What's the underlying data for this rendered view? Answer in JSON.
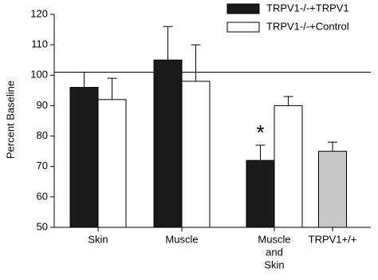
{
  "chart_data": {
    "type": "bar",
    "y_label": "Percent Baseline",
    "categories": [
      "Skin",
      "Muscle",
      [
        "Muscle",
        "and",
        "Skin"
      ],
      "TRPV1+/+"
    ],
    "series": [
      {
        "name": "TRPV1-/-+TRPV1",
        "color": "#1a1a1a",
        "values": [
          96,
          105,
          72,
          null
        ],
        "errors": [
          5,
          11,
          5,
          null
        ]
      },
      {
        "name": "TRPV1-/-+Control",
        "color": "#ffffff",
        "values": [
          92,
          98,
          90,
          null
        ],
        "errors": [
          7,
          12,
          3,
          null
        ]
      },
      {
        "color": "#c8c8c8",
        "values": [
          null,
          null,
          null,
          75
        ],
        "errors": [
          null,
          null,
          null,
          3
        ]
      }
    ],
    "reference_line": 101,
    "annotation": "*",
    "ylim": [
      50,
      120
    ],
    "yticks": [
      50,
      60,
      70,
      80,
      90,
      100,
      110,
      120
    ]
  }
}
